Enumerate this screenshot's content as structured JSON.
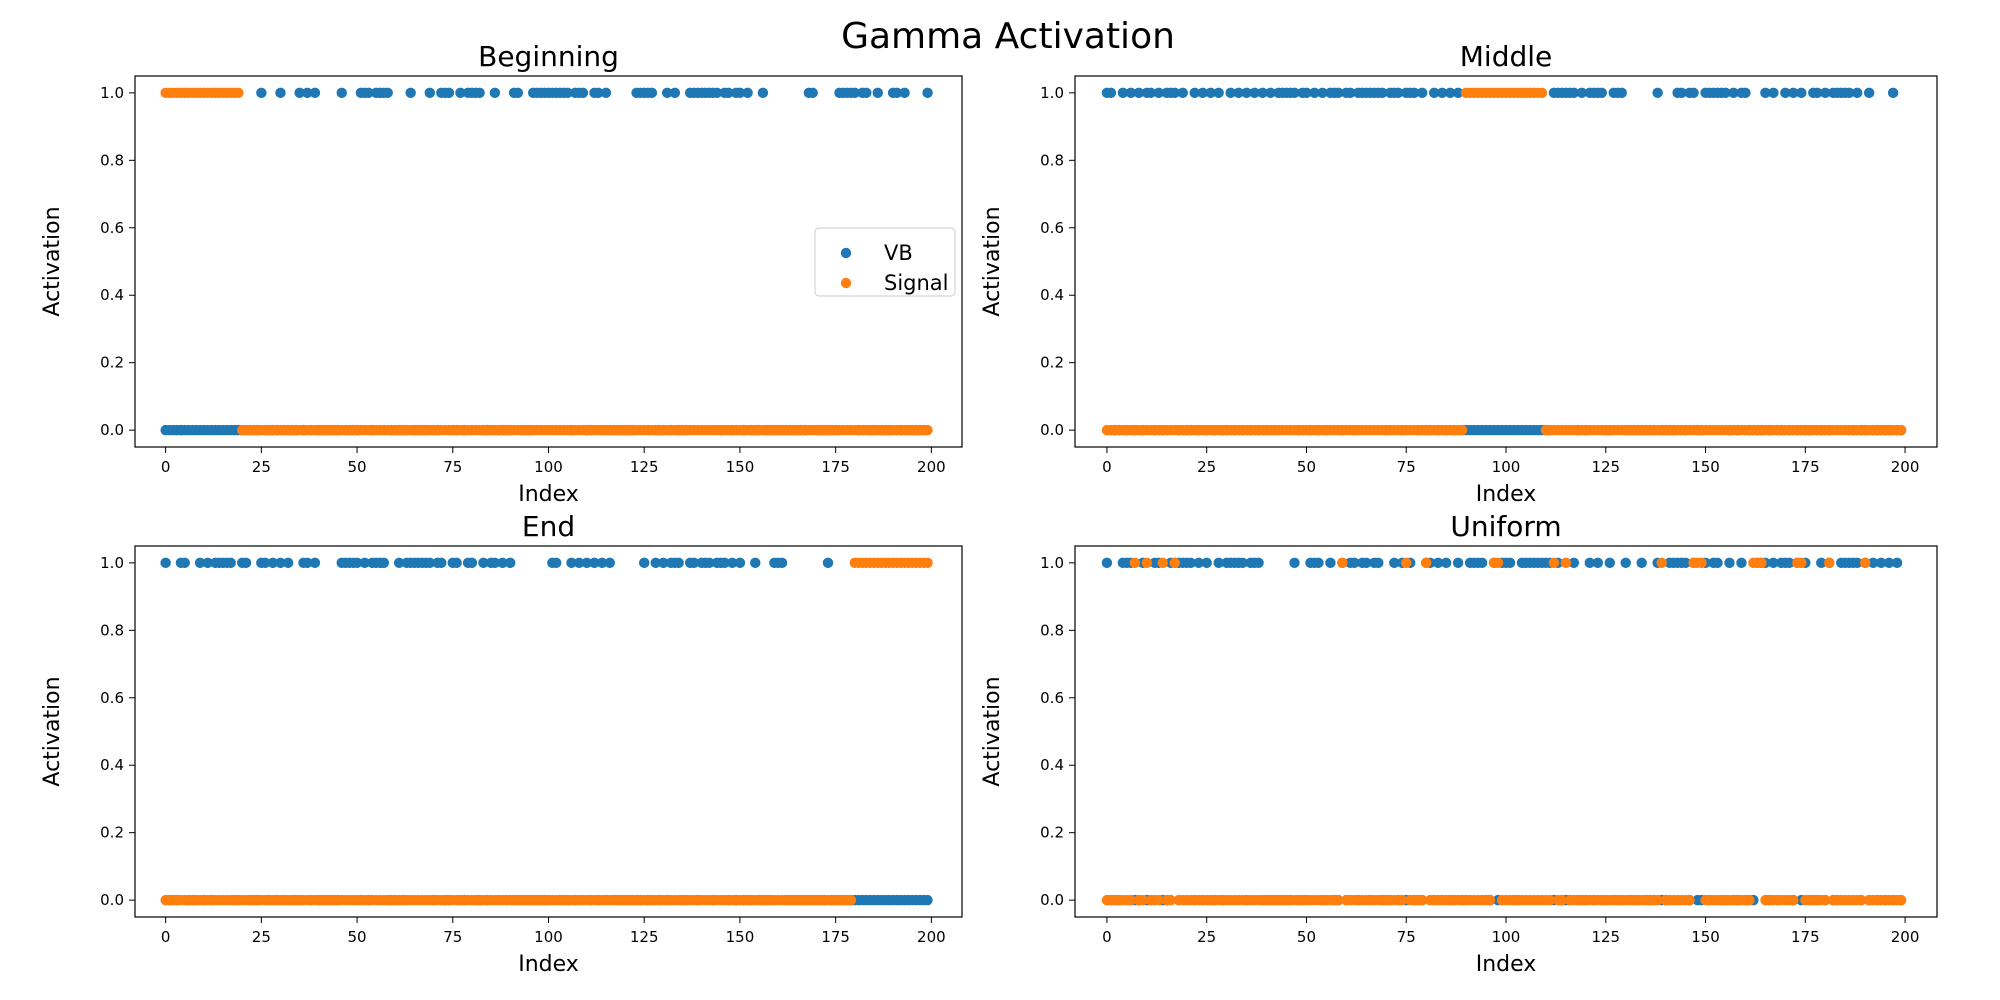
{
  "title": "Gamma Activation",
  "colors": {
    "vb": "#1f77b4",
    "signal": "#ff7f0e"
  },
  "legend": {
    "placement": "center-right",
    "entries": [
      "VB",
      "Signal"
    ]
  },
  "chart_data": [
    {
      "type": "scatter",
      "title": "Beginning",
      "xlabel": "Index",
      "ylabel": "Activation",
      "xlim": [
        -8,
        208
      ],
      "ylim": [
        -0.05,
        1.05
      ],
      "xticks": [
        0,
        25,
        50,
        75,
        100,
        125,
        150,
        175,
        200
      ],
      "yticks": [
        0.0,
        0.2,
        0.4,
        0.6,
        0.8,
        1.0
      ],
      "show_legend": true,
      "series": [
        {
          "name": "VB",
          "ones": [
            25,
            30,
            35,
            37,
            39,
            46,
            51,
            52,
            53,
            55,
            56,
            57,
            58,
            64,
            69,
            72,
            73,
            74,
            77,
            79,
            80,
            81,
            82,
            86,
            91,
            92,
            96,
            97,
            98,
            99,
            100,
            101,
            102,
            103,
            104,
            105,
            107,
            108,
            109,
            112,
            113,
            115,
            123,
            124,
            125,
            126,
            127,
            131,
            133,
            137,
            138,
            139,
            140,
            141,
            142,
            143,
            144,
            146,
            147,
            149,
            150,
            152,
            156,
            168,
            169,
            176,
            177,
            178,
            179,
            180,
            182,
            183,
            186,
            190,
            191,
            193,
            199
          ],
          "zero_extra": [
            4
          ]
        },
        {
          "name": "Signal",
          "ones_range": [
            0,
            19
          ],
          "zeros_range": [
            20,
            199
          ]
        }
      ]
    },
    {
      "type": "scatter",
      "title": "Middle",
      "xlabel": "Index",
      "ylabel": "Activation",
      "xlim": [
        -8,
        208
      ],
      "ylim": [
        -0.05,
        1.05
      ],
      "xticks": [
        0,
        25,
        50,
        75,
        100,
        125,
        150,
        175,
        200
      ],
      "yticks": [
        0.0,
        0.2,
        0.4,
        0.6,
        0.8,
        1.0
      ],
      "show_legend": false,
      "series": [
        {
          "name": "VB",
          "ones": [
            0,
            1,
            4,
            6,
            8,
            10,
            11,
            13,
            15,
            16,
            17,
            19,
            22,
            24,
            26,
            28,
            31,
            33,
            35,
            37,
            39,
            41,
            43,
            44,
            45,
            46,
            47,
            49,
            50,
            52,
            54,
            56,
            57,
            58,
            60,
            61,
            63,
            64,
            65,
            66,
            67,
            68,
            69,
            71,
            72,
            73,
            75,
            76,
            77,
            79,
            82,
            84,
            86,
            88,
            112,
            113,
            114,
            115,
            116,
            117,
            119,
            121,
            122,
            123,
            124,
            127,
            128,
            129,
            138,
            143,
            144,
            146,
            147,
            150,
            151,
            152,
            153,
            154,
            155,
            157,
            159,
            160,
            165,
            167,
            170,
            172,
            174,
            177,
            178,
            180,
            182,
            183,
            184,
            185,
            186,
            188,
            191,
            197
          ],
          "zero_extra": []
        },
        {
          "name": "Signal",
          "ones_range": [
            90,
            109
          ],
          "zeros_ranges": [
            [
              0,
              89
            ],
            [
              110,
              199
            ]
          ]
        }
      ]
    },
    {
      "type": "scatter",
      "title": "End",
      "xlabel": "Index",
      "ylabel": "Activation",
      "xlim": [
        -8,
        208
      ],
      "ylim": [
        -0.05,
        1.05
      ],
      "xticks": [
        0,
        25,
        50,
        75,
        100,
        125,
        150,
        175,
        200
      ],
      "yticks": [
        0.0,
        0.2,
        0.4,
        0.6,
        0.8,
        1.0
      ],
      "show_legend": false,
      "series": [
        {
          "name": "VB",
          "ones": [
            0,
            4,
            5,
            9,
            11,
            13,
            14,
            15,
            16,
            17,
            20,
            21,
            25,
            26,
            28,
            30,
            32,
            36,
            37,
            39,
            46,
            47,
            48,
            49,
            50,
            52,
            54,
            55,
            56,
            57,
            61,
            63,
            64,
            65,
            66,
            67,
            68,
            69,
            71,
            72,
            75,
            76,
            79,
            80,
            83,
            85,
            86,
            88,
            90,
            101,
            102,
            106,
            108,
            110,
            112,
            114,
            116,
            125,
            128,
            130,
            132,
            133,
            134,
            137,
            138,
            140,
            141,
            142,
            144,
            145,
            146,
            148,
            150,
            154,
            159,
            160,
            161,
            173
          ],
          "zero_extra": []
        },
        {
          "name": "Signal",
          "ones_range": [
            180,
            199
          ],
          "zeros_range": [
            0,
            179
          ]
        }
      ]
    },
    {
      "type": "scatter",
      "title": "Uniform",
      "xlabel": "Index",
      "ylabel": "Activation",
      "xlim": [
        -8,
        208
      ],
      "ylim": [
        -0.05,
        1.05
      ],
      "xticks": [
        0,
        25,
        50,
        75,
        100,
        125,
        150,
        175,
        200
      ],
      "yticks": [
        0.0,
        0.2,
        0.4,
        0.6,
        0.8,
        1.0
      ],
      "show_legend": false,
      "series": [
        {
          "name": "VB",
          "ones": [
            0,
            4,
            5,
            6,
            9,
            12,
            13,
            16,
            17,
            18,
            19,
            20,
            21,
            23,
            25,
            28,
            30,
            31,
            32,
            33,
            34,
            36,
            37,
            38,
            47,
            51,
            52,
            53,
            56,
            59,
            61,
            62,
            64,
            65,
            67,
            68,
            72,
            74,
            76,
            80,
            81,
            83,
            85,
            88,
            91,
            92,
            93,
            94,
            97,
            99,
            100,
            101,
            104,
            105,
            106,
            107,
            108,
            109,
            110,
            111,
            113,
            117,
            121,
            123,
            126,
            130,
            134,
            138,
            141,
            142,
            143,
            144,
            145,
            147,
            150,
            152,
            153,
            156,
            159,
            163,
            164,
            165,
            167,
            169,
            170,
            171,
            173,
            175,
            179,
            181,
            184,
            185,
            186,
            187,
            188,
            190,
            192,
            194,
            196,
            198
          ],
          "zero_extra": []
        },
        {
          "name": "Signal",
          "ones": [
            7,
            10,
            14,
            17,
            59,
            75,
            80,
            97,
            98,
            112,
            115,
            139,
            147,
            148,
            149,
            162,
            163,
            164,
            173,
            174,
            181,
            190
          ],
          "zeros_complement": true
        }
      ]
    }
  ]
}
